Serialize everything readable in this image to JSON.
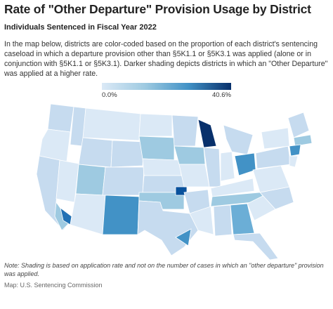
{
  "header": {
    "title": "Rate of \"Other Departure\" Provision Usage by District",
    "subtitle": "Individuals Sentenced in Fiscal Year 2022"
  },
  "description": "In the map below, districts are color-coded based on the proportion of each district's sentencing caseload in which a departure provision other than §5K1.1 or §5K3.1 was applied (alone or in conjunction with §5K1.1 or §5K3.1). Darker shading depicts districts in which an \"Other Departure\" was applied at a higher rate.",
  "legend": {
    "min_label": "0.0%",
    "max_label": "40.6%"
  },
  "note": "Note: Shading is based on application rate and not on the number of cases in which an \"other departure\" provision was applied.",
  "source": "Map: U.S. Sentencing Commission"
}
